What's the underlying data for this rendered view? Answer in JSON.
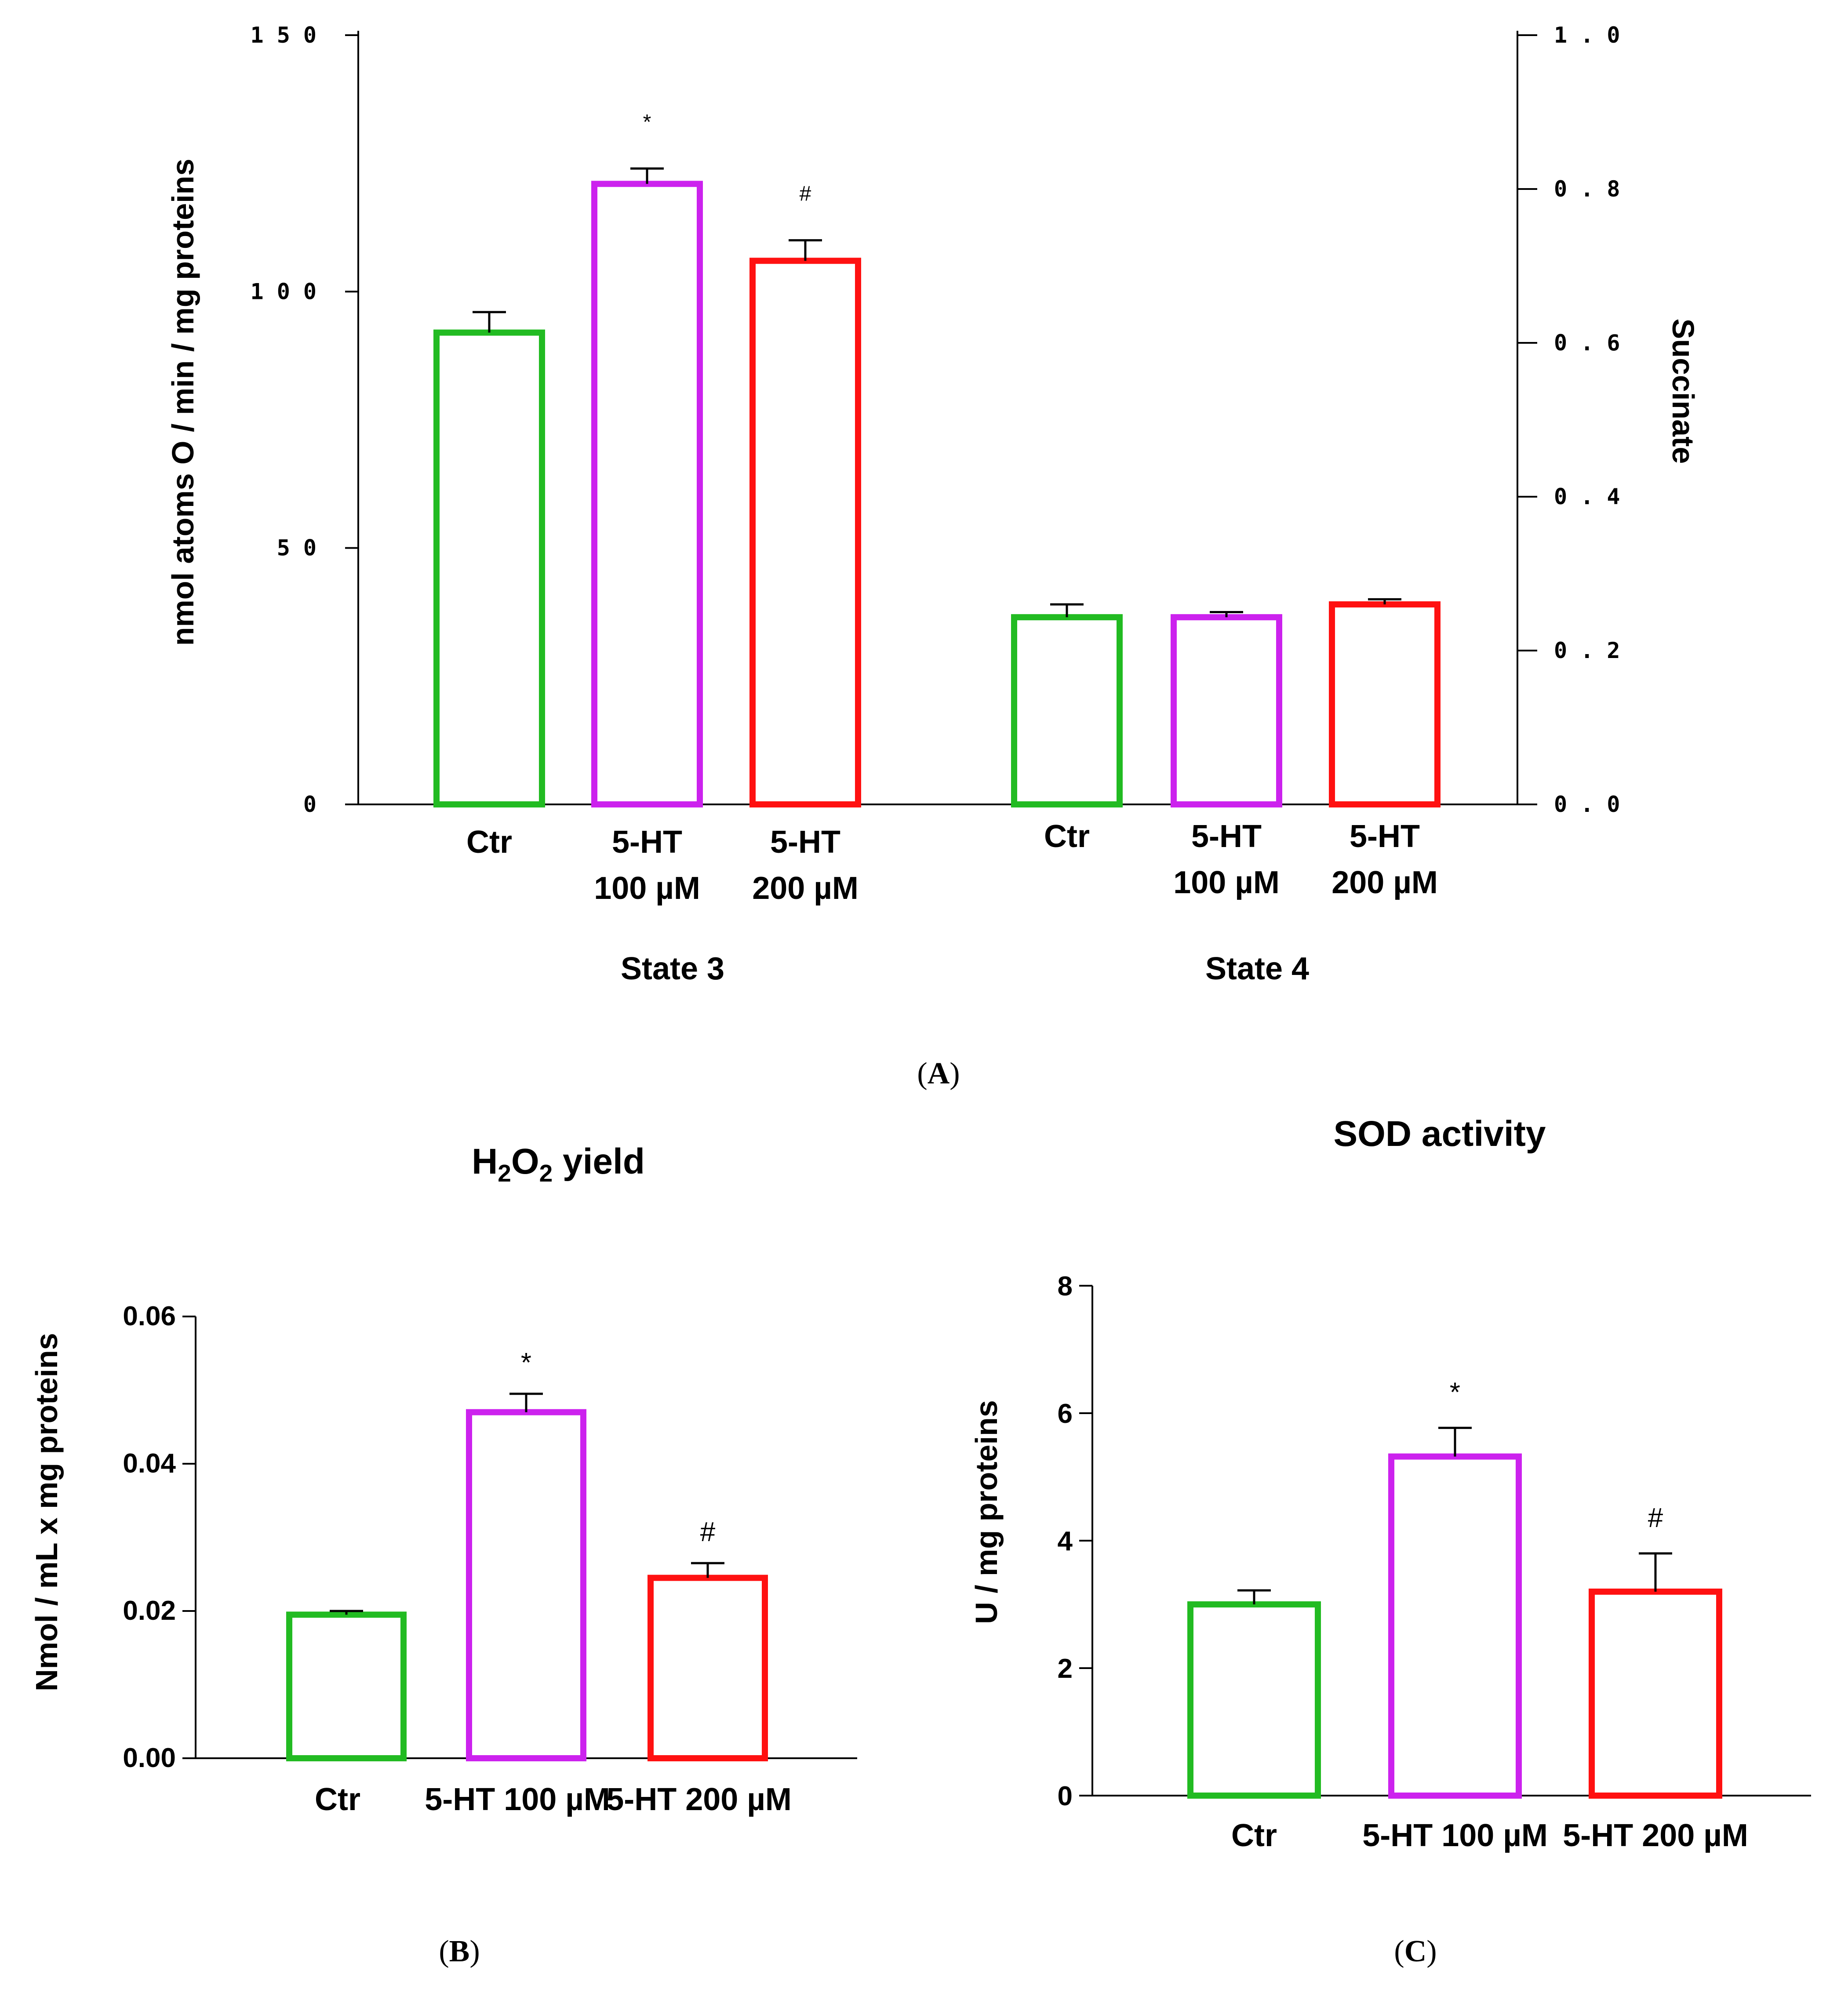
{
  "chart_data": [
    {
      "id": "A",
      "type": "bar",
      "panel_label": "A",
      "ylabel": "nmol atoms O / min / mg proteins",
      "ylabel_right": "Succinate",
      "ylim": [
        0,
        150
      ],
      "yticks": [
        "0",
        "5 0",
        "1 0 0",
        "1 5 0"
      ],
      "yticks_right": [
        "0 . 0",
        "0 . 2",
        "0 . 4",
        "0 . 6",
        "0 . 8",
        "1 . 0"
      ],
      "ylim_right": [
        0,
        1.0
      ],
      "groups": [
        {
          "name": "State 3",
          "categories": [
            {
              "line1": "Ctr",
              "line2": ""
            },
            {
              "line1": "5-HT",
              "line2": "100 µM"
            },
            {
              "line1": "5-HT",
              "line2": "200 µM"
            }
          ],
          "values": [
            92,
            121,
            106
          ],
          "errors": [
            4,
            3,
            4
          ],
          "annotations": [
            "",
            "*",
            "#"
          ]
        },
        {
          "name": "State 4",
          "categories": [
            {
              "line1": "Ctr",
              "line2": ""
            },
            {
              "line1": "5-HT",
              "line2": "100 µM"
            },
            {
              "line1": "5-HT",
              "line2": "200 µM"
            }
          ],
          "values": [
            36.5,
            36.5,
            39
          ],
          "errors": [
            2.5,
            1,
            1
          ],
          "annotations": [
            "",
            "",
            ""
          ]
        }
      ],
      "colors": [
        "#22bb22",
        "#cc22ee",
        "#ff1111"
      ]
    },
    {
      "id": "B",
      "type": "bar",
      "panel_label": "B",
      "title_main": "H",
      "title_sub1": "2",
      "title_mid": "O",
      "title_sub2": "2",
      "title_rest": " yield",
      "ylabel": "Nmol / mL x mg proteins",
      "ylim": [
        0,
        0.06
      ],
      "yticks": [
        "0.00",
        "0.02",
        "0.04",
        "0.06"
      ],
      "categories": [
        "Ctr",
        "5-HT 100 µM",
        "5-HT 200 µM"
      ],
      "values": [
        0.0195,
        0.047,
        0.0245
      ],
      "errors": [
        0.0005,
        0.0025,
        0.002
      ],
      "annotations": [
        "",
        "*",
        "#"
      ],
      "colors": [
        "#22bb22",
        "#cc22ee",
        "#ff1111"
      ]
    },
    {
      "id": "C",
      "type": "bar",
      "panel_label": "C",
      "title": "SOD activity",
      "ylabel": "U / mg proteins",
      "ylim": [
        0,
        8
      ],
      "yticks": [
        "0",
        "2",
        "4",
        "6",
        "8"
      ],
      "categories": [
        "Ctr",
        "5-HT 100 µM",
        "5-HT 200 µM"
      ],
      "values": [
        3.0,
        5.32,
        3.2
      ],
      "errors": [
        0.22,
        0.45,
        0.6
      ],
      "annotations": [
        "",
        "*",
        "#"
      ],
      "colors": [
        "#22bb22",
        "#cc22ee",
        "#ff1111"
      ]
    }
  ]
}
